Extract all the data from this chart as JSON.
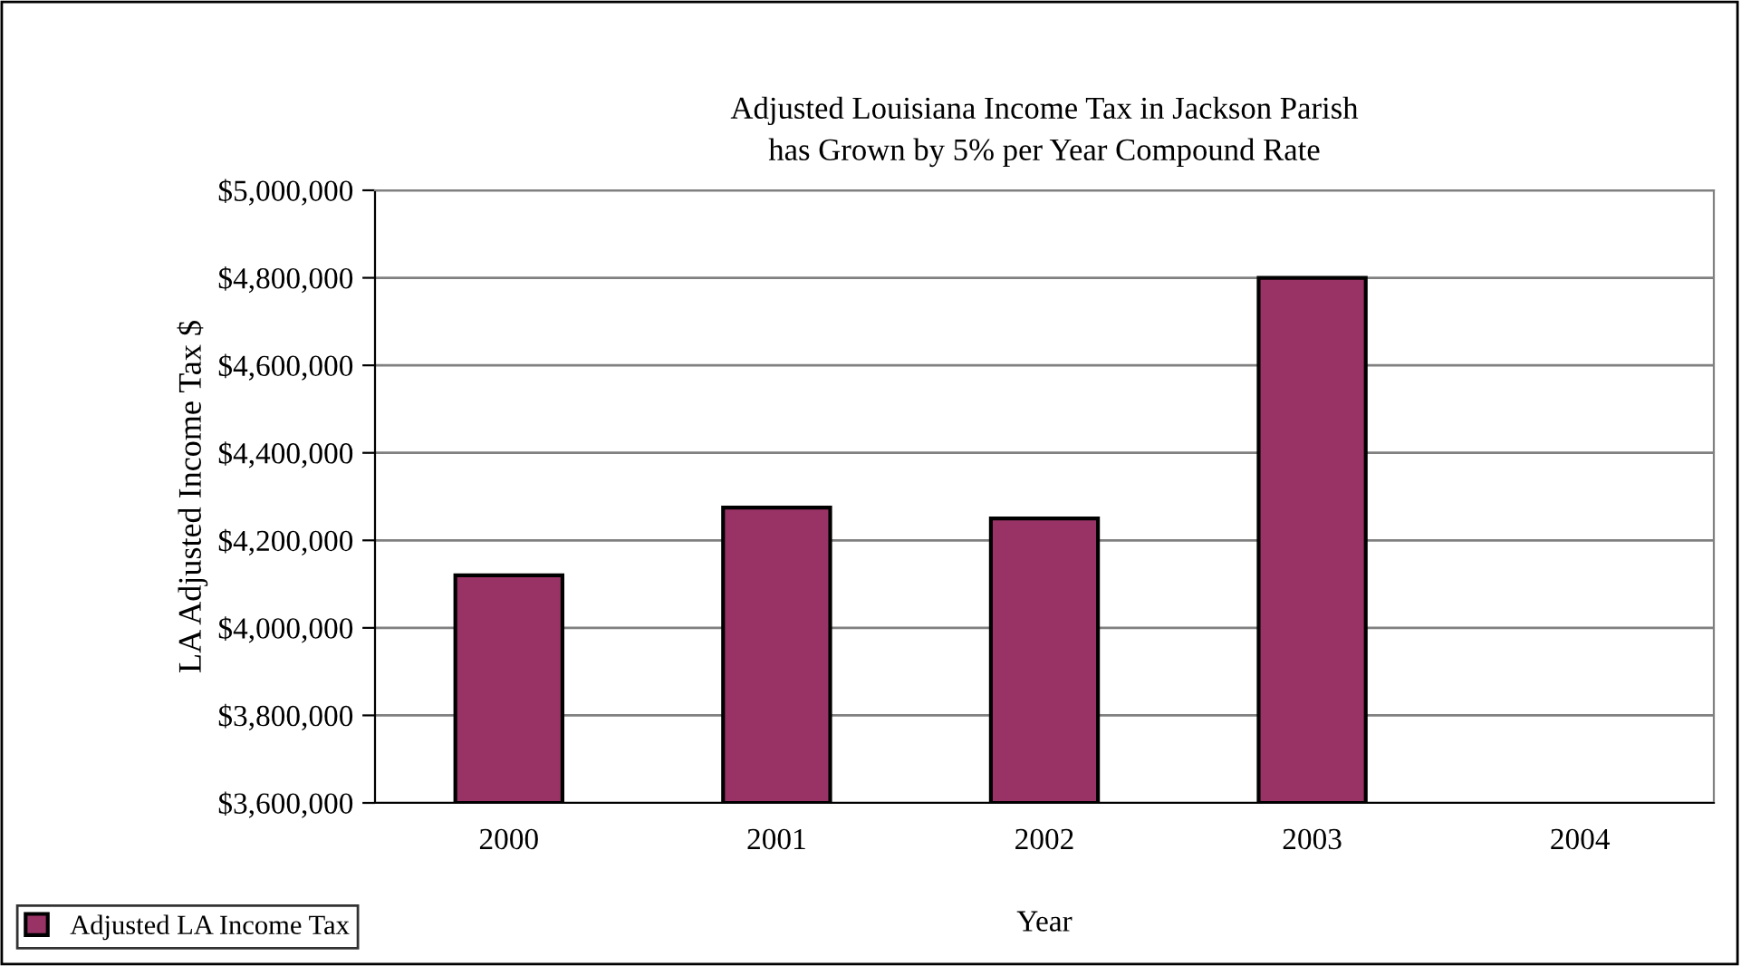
{
  "chart_data": {
    "type": "bar",
    "title": "Adjusted Louisiana Income Tax in Jackson Parish\nhas Grown by 5% per Year Compound Rate",
    "xlabel": "Year",
    "ylabel": "LA Adjusted Income Tax $",
    "categories": [
      "2000",
      "2001",
      "2002",
      "2003",
      "2004"
    ],
    "series": [
      {
        "name": "Adjusted LA Income Tax",
        "color": "#993366",
        "values": [
          4120000,
          4275000,
          4250000,
          4800000,
          null
        ]
      }
    ],
    "ylim": [
      3600000,
      5000000
    ],
    "yticks": [
      {
        "value": 3600000,
        "label": "$3,600,000"
      },
      {
        "value": 3800000,
        "label": "$3,800,000"
      },
      {
        "value": 4000000,
        "label": "$4,000,000"
      },
      {
        "value": 4200000,
        "label": "$4,200,000"
      },
      {
        "value": 4400000,
        "label": "$4,400,000"
      },
      {
        "value": 4600000,
        "label": "$4,600,000"
      },
      {
        "value": 4800000,
        "label": "$4,800,000"
      },
      {
        "value": 5000000,
        "label": "$5,000,000"
      }
    ],
    "grid": "y",
    "legend": "bottom left"
  }
}
